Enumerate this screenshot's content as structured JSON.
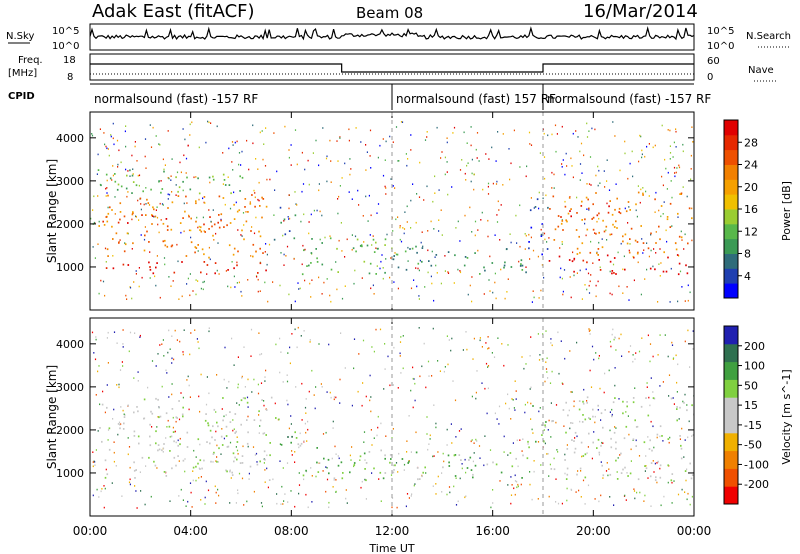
{
  "header": {
    "title": "Adak East (fitACF)",
    "beam": "Beam 08",
    "date": "16/Mar/2014"
  },
  "strips": {
    "nsky": {
      "label": "N.Sky",
      "ticks": [
        "10^5",
        "10^0"
      ]
    },
    "nsearch": {
      "label": "N.Search",
      "ticks": [
        "10^5",
        "10^0"
      ]
    },
    "freq": {
      "label_1": "Freq.",
      "label_2": "[MHz]",
      "ticks": [
        "18",
        "8"
      ]
    },
    "nave": {
      "label": "Nave",
      "ticks": [
        "60",
        "0"
      ]
    },
    "cpid": {
      "label": "CPID",
      "segments": [
        {
          "text": "normalsound (fast) -157 RF",
          "start_h": 0.0,
          "end_h": 12.0
        },
        {
          "text": "normalsound (fast) 157 RF",
          "start_h": 12.0,
          "end_h": 18.0
        },
        {
          "text": "normalsound (fast) -157 RF",
          "start_h": 18.0,
          "end_h": 24.0
        }
      ]
    }
  },
  "chart_data": [
    {
      "type": "heatmap",
      "name": "power",
      "xlabel": "Time UT",
      "ylabel": "Slant Range [km]",
      "xlim": [
        0,
        24
      ],
      "ylim": [
        0,
        4600
      ],
      "x_ticks": [
        0,
        4,
        8,
        12,
        16,
        20,
        24
      ],
      "x_tick_labels": [
        "00:00",
        "04:00",
        "08:00",
        "12:00",
        "16:00",
        "20:00",
        "00:00"
      ],
      "y_ticks": [
        1000,
        2000,
        3000,
        4000
      ],
      "colorbar": {
        "label": "Power [dB]",
        "tick_labels": [
          "4",
          "8",
          "12",
          "16",
          "20",
          "24",
          "28"
        ],
        "colors": [
          "#0000ff",
          "#1f3fb0",
          "#2f6c7a",
          "#3b9a55",
          "#58b84a",
          "#9acd32",
          "#f0c000",
          "#f5a000",
          "#f28000",
          "#ee5000",
          "#e62800",
          "#e00000"
        ]
      },
      "echo_regions": [
        {
          "x": [
            0.3,
            7.2
          ],
          "y": [
            850,
            1150
          ],
          "level": 11
        },
        {
          "x": [
            0.3,
            7.0
          ],
          "y": [
            1200,
            2700
          ],
          "level": 8
        },
        {
          "x": [
            0.3,
            5.2
          ],
          "y": [
            1950,
            2250
          ],
          "level": 10
        },
        {
          "x": [
            0.3,
            6.5
          ],
          "y": [
            2700,
            3300
          ],
          "level": 4
        },
        {
          "x": [
            7.3,
            8.2
          ],
          "y": [
            1500,
            2400
          ],
          "level": 2
        },
        {
          "x": [
            8.2,
            12.0
          ],
          "y": [
            850,
            1700
          ],
          "level": 4
        },
        {
          "x": [
            12.0,
            17.3
          ],
          "y": [
            850,
            1500
          ],
          "level": 3
        },
        {
          "x": [
            17.3,
            18.2
          ],
          "y": [
            1300,
            2600
          ],
          "level": 1
        },
        {
          "x": [
            18.2,
            24.0
          ],
          "y": [
            850,
            1300
          ],
          "level": 11
        },
        {
          "x": [
            18.2,
            24.0
          ],
          "y": [
            1300,
            2800
          ],
          "level": 8
        },
        {
          "x": [
            18.4,
            21.0
          ],
          "y": [
            2100,
            2500
          ],
          "level": 10
        }
      ]
    },
    {
      "type": "heatmap",
      "name": "velocity",
      "xlabel": "Time UT",
      "ylabel": "Slant Range [km]",
      "xlim": [
        0,
        24
      ],
      "ylim": [
        0,
        4600
      ],
      "x_ticks": [
        0,
        4,
        8,
        12,
        16,
        20,
        24
      ],
      "x_tick_labels": [
        "00:00",
        "04:00",
        "08:00",
        "12:00",
        "16:00",
        "20:00",
        "00:00"
      ],
      "y_ticks": [
        1000,
        2000,
        3000,
        4000
      ],
      "colorbar": {
        "label": "Velocity [m s^-1]",
        "tick_labels": [
          "200",
          "100",
          "50",
          "15",
          "-15",
          "-50",
          "-100",
          "-200"
        ],
        "colors": [
          "#2020b0",
          "#2f7050",
          "#40a040",
          "#80d040",
          "#c8c8c8",
          "#c8c8c8",
          "#f0b000",
          "#f08000",
          "#f05000",
          "#f00000"
        ]
      },
      "echo_regions": [
        {
          "x": [
            0.3,
            7.2
          ],
          "y": [
            850,
            2800
          ],
          "level": 4
        },
        {
          "x": [
            7.3,
            8.2
          ],
          "y": [
            1500,
            2400
          ],
          "level": 2
        },
        {
          "x": [
            8.2,
            12.0
          ],
          "y": [
            850,
            1700
          ],
          "level": 3
        },
        {
          "x": [
            12.0,
            17.3
          ],
          "y": [
            850,
            1500
          ],
          "level": 3
        },
        {
          "x": [
            17.3,
            18.2
          ],
          "y": [
            1300,
            2600
          ],
          "level": 3
        },
        {
          "x": [
            18.2,
            24.0
          ],
          "y": [
            850,
            2800
          ],
          "level": 4
        }
      ]
    }
  ]
}
